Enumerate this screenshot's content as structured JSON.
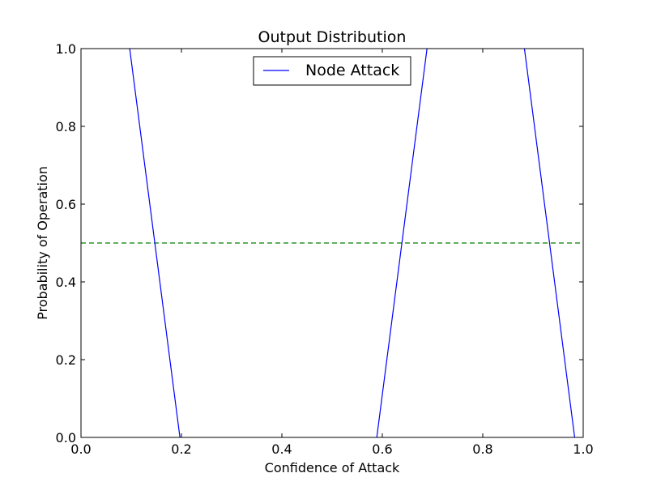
{
  "chart_data": {
    "type": "line",
    "title": "Output Distribution",
    "xlabel": "Confidence of Attack",
    "ylabel": "Probability of Operation",
    "xlim": [
      0.0,
      1.0
    ],
    "ylim": [
      0.0,
      1.0
    ],
    "xticks": [
      0.0,
      0.2,
      0.4,
      0.6,
      0.8,
      1.0
    ],
    "yticks": [
      0.0,
      0.2,
      0.4,
      0.6,
      0.8,
      1.0
    ],
    "xtick_labels": [
      "0.0",
      "0.2",
      "0.4",
      "0.6",
      "0.8",
      "1.0"
    ],
    "ytick_labels": [
      "0.0",
      "0.2",
      "0.4",
      "0.6",
      "0.8",
      "1.0"
    ],
    "grid": false,
    "legend_position": "top-center",
    "series": [
      {
        "name": "Node Attack",
        "color": "#0000ff",
        "style": "solid",
        "segments": [
          [
            [
              0.097,
              1.0
            ],
            [
              0.197,
              0.0
            ]
          ],
          [
            [
              0.589,
              0.0
            ],
            [
              0.689,
              1.0
            ]
          ],
          [
            [
              0.883,
              1.0
            ],
            [
              0.983,
              0.0
            ]
          ]
        ]
      }
    ],
    "reference_lines": [
      {
        "orientation": "horizontal",
        "y": 0.5,
        "color": "#008000",
        "style": "dashed"
      }
    ]
  }
}
